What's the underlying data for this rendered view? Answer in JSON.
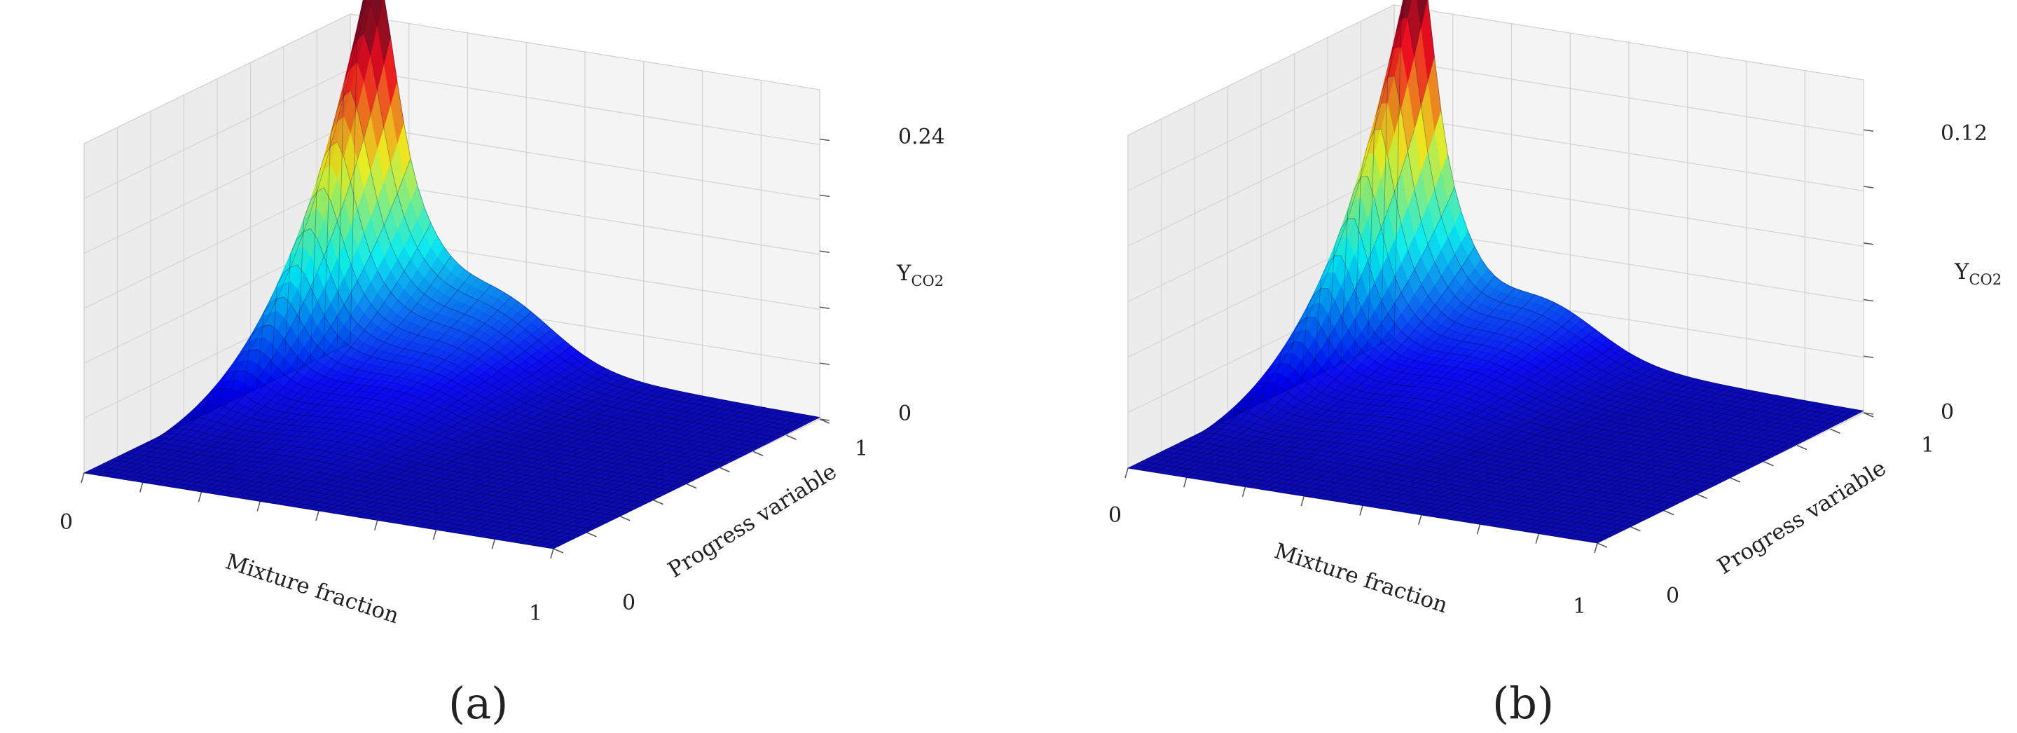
{
  "chart_data": [
    {
      "type": "surface",
      "panel_label": "(a)",
      "xlabel": "Mixture fraction",
      "ylabel": "Progress variable",
      "zlabel": "Y",
      "zlabel_sub": "CO2",
      "x_ticks": [
        "0",
        "1"
      ],
      "y_ticks": [
        "0",
        "1"
      ],
      "z_ticks": [
        "0",
        "0.24"
      ],
      "xlim": [
        0,
        1
      ],
      "ylim": [
        0,
        1
      ],
      "zlim": [
        0,
        0.24
      ],
      "zmax_tick": 0.24,
      "peak": {
        "x": 0.06,
        "y": 1.0,
        "z": 0.28
      },
      "ridge_width": 0.05,
      "lean_decay": 1.0,
      "secondary_bump": 0.045,
      "grid": true,
      "colormap": "jet"
    },
    {
      "type": "surface",
      "panel_label": "(b)",
      "xlabel": "Mixture fraction",
      "ylabel": "Progress variable",
      "zlabel": "Y",
      "zlabel_sub": "CO2",
      "x_ticks": [
        "0",
        "1"
      ],
      "y_ticks": [
        "0",
        "1"
      ],
      "z_ticks": [
        "0",
        "0.12"
      ],
      "xlim": [
        0,
        1
      ],
      "ylim": [
        0,
        1
      ],
      "zlim": [
        0,
        0.12
      ],
      "zmax_tick": 0.12,
      "peak": {
        "x": 0.055,
        "y": 1.0,
        "z": 0.145
      },
      "ridge_width": 0.04,
      "lean_decay": 1.2,
      "secondary_bump": 0.018,
      "grid": true,
      "colormap": "jet"
    }
  ]
}
